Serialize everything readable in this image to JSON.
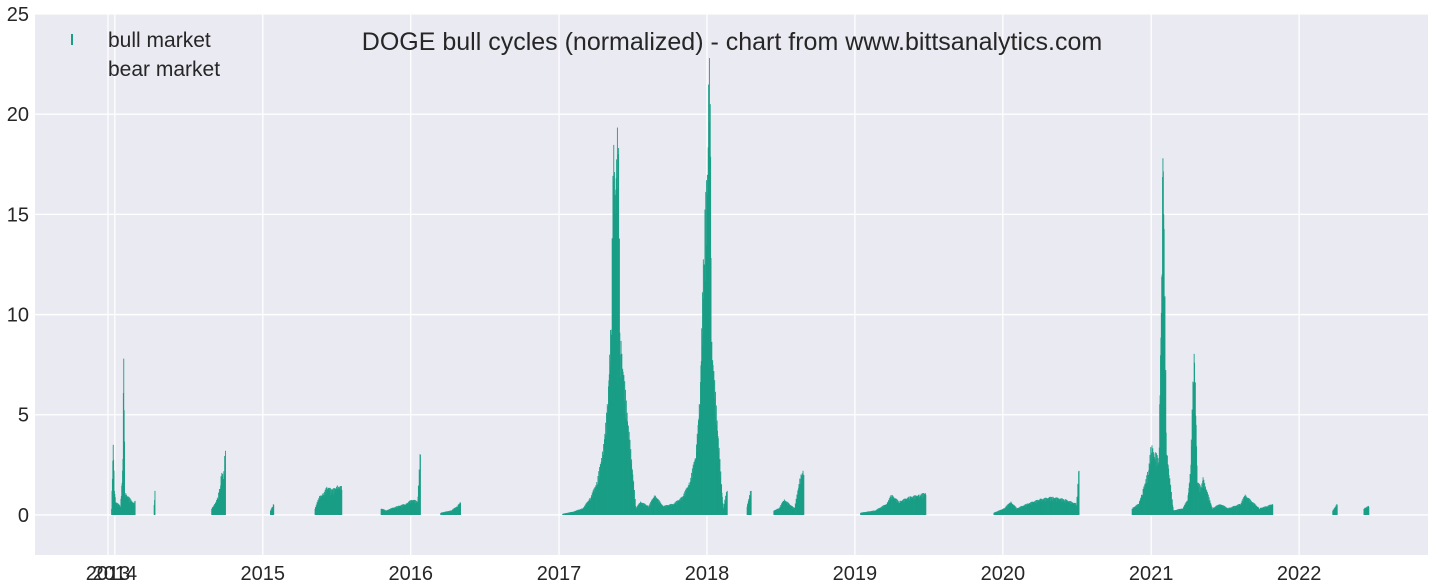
{
  "chart_data": {
    "type": "bar",
    "title": "DOGE bull cycles (normalized)  - chart from www.bittsanalytics.com",
    "xlabel": "",
    "ylabel": "",
    "x_unit": "date",
    "xlim": [
      "2013-06-18",
      "2022-11-15"
    ],
    "ylim": [
      -2,
      25
    ],
    "yticks": [
      0,
      5,
      10,
      15,
      20,
      25
    ],
    "xticks": [
      {
        "date": "2013-12-15",
        "label": "2013"
      },
      {
        "date": "2014-01-01",
        "label": "2014"
      },
      {
        "date": "2015-01-01",
        "label": "2015"
      },
      {
        "date": "2016-01-01",
        "label": "2016"
      },
      {
        "date": "2017-01-01",
        "label": "2017"
      },
      {
        "date": "2018-01-01",
        "label": "2018"
      },
      {
        "date": "2019-01-01",
        "label": "2019"
      },
      {
        "date": "2020-01-01",
        "label": "2020"
      },
      {
        "date": "2021-01-01",
        "label": "2021"
      },
      {
        "date": "2022-01-01",
        "label": "2022"
      }
    ],
    "grid": true,
    "background": "#eaeaf2",
    "grid_color": "#ffffff",
    "series": [
      {
        "name": "bull market",
        "color": "#1a9e86",
        "points": [
          [
            "2013-12-24",
            0.3
          ],
          [
            "2013-12-26",
            1.8
          ],
          [
            "2013-12-28",
            3.5
          ],
          [
            "2013-12-31",
            1.2
          ],
          [
            "2014-01-03",
            0.6
          ],
          [
            "2014-01-15",
            0.4
          ],
          [
            "2014-01-19",
            1.6
          ],
          [
            "2014-01-21",
            2.8
          ],
          [
            "2014-01-23",
            7.8
          ],
          [
            "2014-01-26",
            1.0
          ],
          [
            "2014-02-18",
            0.5
          ],
          [
            "2014-02-20",
            0.7
          ],
          [
            "2014-04-08",
            0.5
          ],
          [
            "2014-04-10",
            1.2
          ],
          [
            "2014-08-28",
            0.3
          ],
          [
            "2014-09-05",
            0.5
          ],
          [
            "2014-09-12",
            0.8
          ],
          [
            "2014-09-18",
            1.3
          ],
          [
            "2014-09-22",
            2.1
          ],
          [
            "2014-09-26",
            1.6
          ],
          [
            "2014-10-01",
            3.2
          ],
          [
            "2015-01-20",
            0.2
          ],
          [
            "2015-01-25",
            0.4
          ],
          [
            "2015-01-28",
            0.5
          ],
          [
            "2015-05-10",
            0.3
          ],
          [
            "2015-05-20",
            0.8
          ],
          [
            "2015-06-01",
            1.0
          ],
          [
            "2015-06-10",
            1.3
          ],
          [
            "2015-06-20",
            1.1
          ],
          [
            "2015-07-05",
            1.3
          ],
          [
            "2015-07-15",
            1.25
          ],
          [
            "2015-10-20",
            0.3
          ],
          [
            "2015-11-01",
            0.2
          ],
          [
            "2015-11-15",
            0.3
          ],
          [
            "2015-12-01",
            0.4
          ],
          [
            "2015-12-20",
            0.5
          ],
          [
            "2016-01-05",
            0.7
          ],
          [
            "2016-01-18",
            0.6
          ],
          [
            "2016-01-25",
            3.0
          ],
          [
            "2016-03-15",
            0.1
          ],
          [
            "2016-04-10",
            0.2
          ],
          [
            "2016-04-25",
            0.4
          ],
          [
            "2016-05-03",
            0.6
          ],
          [
            "2017-01-10",
            0.05
          ],
          [
            "2017-02-05",
            0.15
          ],
          [
            "2017-03-01",
            0.3
          ],
          [
            "2017-03-20",
            0.8
          ],
          [
            "2017-04-05",
            1.5
          ],
          [
            "2017-04-20",
            3.0
          ],
          [
            "2017-05-01",
            5.0
          ],
          [
            "2017-05-10",
            9.0
          ],
          [
            "2017-05-15",
            16.7
          ],
          [
            "2017-05-20",
            15.0
          ],
          [
            "2017-05-27",
            18.0
          ],
          [
            "2017-06-01",
            8.0
          ],
          [
            "2017-07-10",
            0.3
          ],
          [
            "2017-07-20",
            0.6
          ],
          [
            "2017-08-10",
            0.4
          ],
          [
            "2017-08-25",
            0.9
          ],
          [
            "2017-09-15",
            0.4
          ],
          [
            "2017-10-10",
            0.5
          ],
          [
            "2017-11-01",
            0.8
          ],
          [
            "2017-11-20",
            1.5
          ],
          [
            "2017-12-05",
            2.8
          ],
          [
            "2017-12-15",
            5.5
          ],
          [
            "2017-12-25",
            12.5
          ],
          [
            "2018-01-03",
            16.0
          ],
          [
            "2018-01-07",
            22.8
          ],
          [
            "2018-01-09",
            20.5
          ],
          [
            "2018-01-12",
            8.0
          ],
          [
            "2018-02-10",
            0.3
          ],
          [
            "2018-02-20",
            1.2
          ],
          [
            "2018-04-10",
            0.4
          ],
          [
            "2018-04-20",
            1.2
          ],
          [
            "2018-06-15",
            0.2
          ],
          [
            "2018-06-28",
            0.3
          ],
          [
            "2018-07-10",
            0.7
          ],
          [
            "2018-08-05",
            0.3
          ],
          [
            "2018-08-20",
            1.8
          ],
          [
            "2018-08-28",
            2.0
          ],
          [
            "2019-01-15",
            0.1
          ],
          [
            "2019-02-20",
            0.2
          ],
          [
            "2019-03-20",
            0.5
          ],
          [
            "2019-04-01",
            0.9
          ],
          [
            "2019-04-20",
            0.6
          ],
          [
            "2019-05-15",
            0.8
          ],
          [
            "2019-06-10",
            0.9
          ],
          [
            "2019-06-25",
            1.0
          ],
          [
            "2019-12-10",
            0.1
          ],
          [
            "2020-01-05",
            0.3
          ],
          [
            "2020-01-20",
            0.6
          ],
          [
            "2020-02-05",
            0.3
          ],
          [
            "2020-03-01",
            0.5
          ],
          [
            "2020-04-01",
            0.7
          ],
          [
            "2020-05-01",
            0.8
          ],
          [
            "2020-06-01",
            0.7
          ],
          [
            "2020-07-01",
            0.5
          ],
          [
            "2020-07-07",
            2.2
          ],
          [
            "2020-11-15",
            0.3
          ],
          [
            "2020-12-01",
            0.5
          ],
          [
            "2020-12-10",
            1.0
          ],
          [
            "2020-12-25",
            2.0
          ],
          [
            "2021-01-01",
            3.1
          ],
          [
            "2021-01-10",
            2.8
          ],
          [
            "2021-01-20",
            2.5
          ],
          [
            "2021-01-28",
            12.0
          ],
          [
            "2021-01-30",
            17.8
          ],
          [
            "2021-02-08",
            3.0
          ],
          [
            "2021-02-15",
            1.8
          ],
          [
            "2021-02-25",
            0.2
          ],
          [
            "2021-03-20",
            0.3
          ],
          [
            "2021-04-01",
            0.7
          ],
          [
            "2021-04-08",
            2.0
          ],
          [
            "2021-04-15",
            6.5
          ],
          [
            "2021-04-18",
            7.6
          ],
          [
            "2021-04-25",
            1.5
          ],
          [
            "2021-05-05",
            1.2
          ],
          [
            "2021-05-08",
            1.7
          ],
          [
            "2021-06-01",
            0.3
          ],
          [
            "2021-06-20",
            0.5
          ],
          [
            "2021-07-10",
            0.3
          ],
          [
            "2021-08-10",
            0.5
          ],
          [
            "2021-08-20",
            0.9
          ],
          [
            "2021-09-25",
            0.3
          ],
          [
            "2021-10-15",
            0.4
          ],
          [
            "2021-10-28",
            0.5
          ],
          [
            "2022-03-25",
            0.2
          ],
          [
            "2022-04-05",
            0.5
          ],
          [
            "2022-06-10",
            0.3
          ],
          [
            "2022-06-22",
            0.4
          ]
        ]
      },
      {
        "name": "bear market",
        "color": "#ffffff",
        "points": []
      }
    ]
  }
}
